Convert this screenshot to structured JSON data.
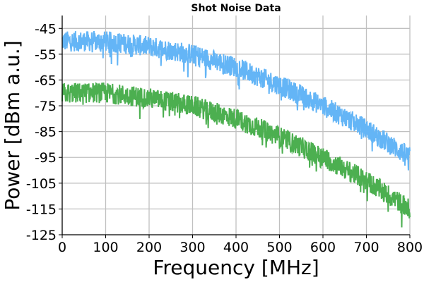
{
  "chart_data": {
    "type": "line",
    "title": "Shot Noise Data",
    "xlabel": "Frequency [MHz]",
    "ylabel": "Power [dBm a.u.]",
    "xlim": [
      0,
      800
    ],
    "ylim": [
      -125,
      -40
    ],
    "xticks": [
      0,
      100,
      200,
      300,
      400,
      500,
      600,
      700,
      800
    ],
    "yticks": [
      -45,
      -55,
      -65,
      -75,
      -85,
      -95,
      -105,
      -115,
      -125
    ],
    "grid": true,
    "legend": "none",
    "x": [
      0,
      100,
      200,
      300,
      400,
      500,
      600,
      700,
      800
    ],
    "series": [
      {
        "color": "#64b5f6",
        "values": [
          -50,
          -50,
          -52,
          -55,
          -60,
          -67,
          -75,
          -84,
          -95
        ],
        "noise_db": 4
      },
      {
        "color": "#4caf50",
        "values": [
          -70,
          -70,
          -72,
          -75,
          -80,
          -87,
          -95,
          -104,
          -115
        ],
        "noise_db": 4
      }
    ]
  }
}
